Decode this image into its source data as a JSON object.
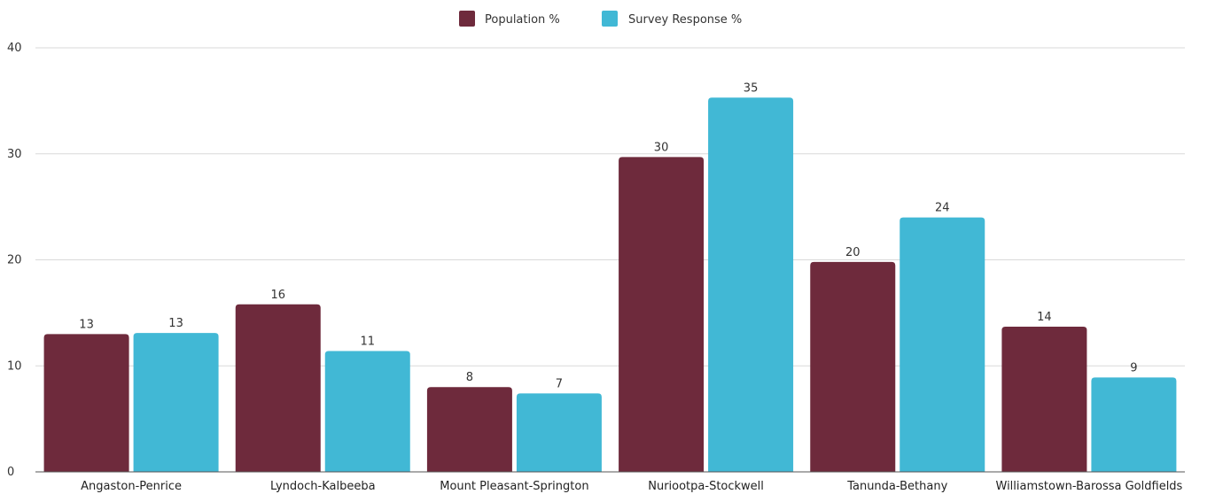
{
  "chart_data": {
    "type": "bar",
    "title": "",
    "xlabel": "",
    "ylabel": "",
    "categories": [
      "Angaston-Penrice",
      "Lyndoch-Kalbeeba",
      "Mount Pleasant-Springton",
      "Nuriootpa-Stockwell",
      "Tanunda-Bethany",
      "Williamstown-Barossa Goldfields"
    ],
    "series": [
      {
        "name": "Population %",
        "color": "#6e2a3c",
        "values": [
          13.0,
          15.8,
          8.0,
          29.7,
          19.8,
          13.7
        ],
        "labels": [
          "13",
          "16",
          "8",
          "30",
          "20",
          "14"
        ]
      },
      {
        "name": "Survey Response %",
        "color": "#41b8d5",
        "values": [
          13.1,
          11.4,
          7.4,
          35.3,
          24.0,
          8.9
        ],
        "labels": [
          "13",
          "11",
          "7",
          "35",
          "24",
          "9"
        ]
      }
    ],
    "ylim": [
      0,
      40
    ],
    "yticks": [
      0,
      10,
      20,
      30,
      40
    ],
    "grid": true,
    "legend_position": "top-center"
  }
}
